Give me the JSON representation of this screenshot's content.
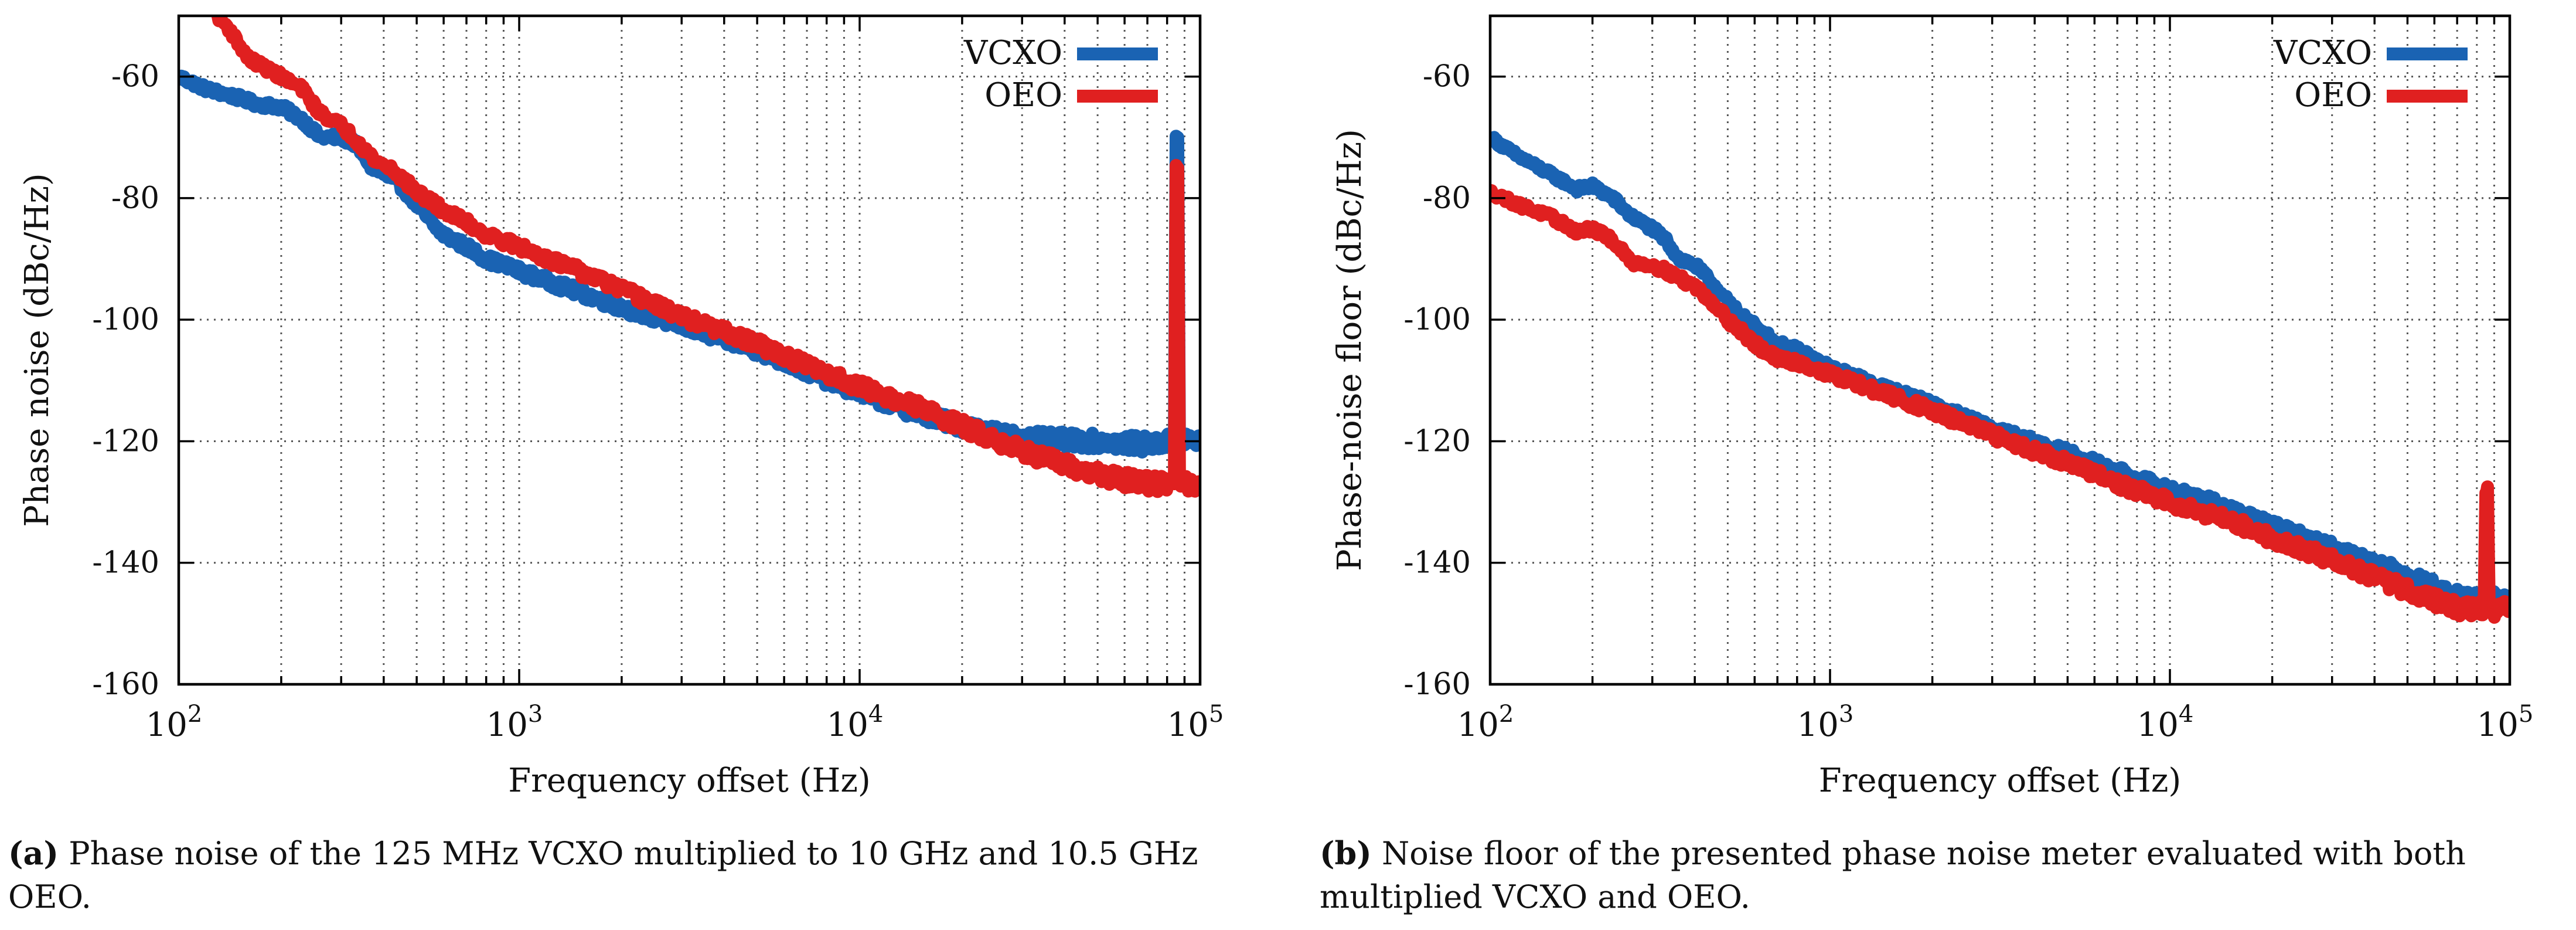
{
  "colors": {
    "vcxo": "#1a63b3",
    "oeo": "#e02020",
    "grid": "#555555",
    "axis": "#000000"
  },
  "chart_data": [
    {
      "type": "line",
      "id": "a",
      "xscale": "log",
      "xlim": [
        100,
        100000
      ],
      "ylim": [
        -160,
        -50
      ],
      "xlabel": "Frequency offset (Hz)",
      "ylabel": "Phase noise (dBc/Hz)",
      "yticks": [
        -60,
        -80,
        -100,
        -120,
        -140,
        -160
      ],
      "ytick_labels": [
        "-60",
        "-80",
        "-100",
        "-120",
        "-140",
        "-160"
      ],
      "xticks": [
        {
          "value": 100,
          "base": "10",
          "exp": "2"
        },
        {
          "value": 1000,
          "base": "10",
          "exp": "3"
        },
        {
          "value": 10000,
          "base": "10",
          "exp": "4"
        },
        {
          "value": 100000,
          "base": "10",
          "exp": "5"
        }
      ],
      "legend": {
        "position": "top-right",
        "entries": [
          "VCXO",
          "OEO"
        ]
      },
      "series": [
        {
          "name": "VCXO",
          "color": "#1a63b3",
          "points": [
            [
              100,
              -60
            ],
            [
              120,
              -62
            ],
            [
              150,
              -63.5
            ],
            [
              170,
              -64.5
            ],
            [
              200,
              -65
            ],
            [
              230,
              -67
            ],
            [
              260,
              -70
            ],
            [
              300,
              -70
            ],
            [
              330,
              -71
            ],
            [
              370,
              -75
            ],
            [
              400,
              -76
            ],
            [
              450,
              -78
            ],
            [
              500,
              -81
            ],
            [
              550,
              -84
            ],
            [
              600,
              -86
            ],
            [
              700,
              -88
            ],
            [
              800,
              -90
            ],
            [
              900,
              -91
            ],
            [
              1000,
              -92
            ],
            [
              1500,
              -95.5
            ],
            [
              2000,
              -98
            ],
            [
              3000,
              -101
            ],
            [
              5000,
              -105
            ],
            [
              7000,
              -108.5
            ],
            [
              10000,
              -112
            ],
            [
              15000,
              -115.5
            ],
            [
              20000,
              -117.5
            ],
            [
              30000,
              -119.5
            ],
            [
              50000,
              -120
            ],
            [
              70000,
              -120.5
            ],
            [
              84000,
              -120
            ],
            [
              85000,
              -70
            ],
            [
              86000,
              -70
            ],
            [
              87000,
              -120
            ],
            [
              100000,
              -120
            ]
          ],
          "noise": 1.4
        },
        {
          "name": "OEO",
          "color": "#e02020",
          "points": [
            [
              130,
              -50
            ],
            [
              140,
              -52
            ],
            [
              160,
              -57
            ],
            [
              200,
              -60
            ],
            [
              230,
              -62
            ],
            [
              260,
              -66
            ],
            [
              300,
              -68
            ],
            [
              340,
              -71
            ],
            [
              380,
              -74
            ],
            [
              420,
              -75
            ],
            [
              500,
              -79
            ],
            [
              600,
              -82
            ],
            [
              700,
              -84
            ],
            [
              800,
              -86
            ],
            [
              1000,
              -88
            ],
            [
              1500,
              -92
            ],
            [
              2000,
              -95
            ],
            [
              3000,
              -99.5
            ],
            [
              5000,
              -104
            ],
            [
              7000,
              -107.5
            ],
            [
              10000,
              -111
            ],
            [
              15000,
              -114.5
            ],
            [
              20000,
              -117.5
            ],
            [
              30000,
              -121.5
            ],
            [
              40000,
              -124
            ],
            [
              50000,
              -125.5
            ],
            [
              70000,
              -127
            ],
            [
              84000,
              -127
            ],
            [
              85000,
              -75
            ],
            [
              86000,
              -75
            ],
            [
              87000,
              -127
            ],
            [
              100000,
              -127
            ]
          ],
          "noise": 1.4
        }
      ]
    },
    {
      "type": "line",
      "id": "b",
      "xscale": "log",
      "xlim": [
        100,
        100000
      ],
      "ylim": [
        -160,
        -50
      ],
      "xlabel": "Frequency offset (Hz)",
      "ylabel": "Phase-noise floor (dBc/Hz)",
      "yticks": [
        -60,
        -80,
        -100,
        -120,
        -140,
        -160
      ],
      "ytick_labels": [
        "-60",
        "-80",
        "-100",
        "-120",
        "-140",
        "-160"
      ],
      "xticks": [
        {
          "value": 100,
          "base": "10",
          "exp": "2"
        },
        {
          "value": 1000,
          "base": "10",
          "exp": "3"
        },
        {
          "value": 10000,
          "base": "10",
          "exp": "4"
        },
        {
          "value": 100000,
          "base": "10",
          "exp": "5"
        }
      ],
      "legend": {
        "position": "top-right",
        "entries": [
          "VCXO",
          "OEO"
        ]
      },
      "series": [
        {
          "name": "VCXO",
          "color": "#1a63b3",
          "points": [
            [
              100,
              -70
            ],
            [
              120,
              -73
            ],
            [
              150,
              -76
            ],
            [
              180,
              -78.5
            ],
            [
              200,
              -78
            ],
            [
              230,
              -80
            ],
            [
              260,
              -83
            ],
            [
              300,
              -85
            ],
            [
              330,
              -87
            ],
            [
              360,
              -90
            ],
            [
              400,
              -91
            ],
            [
              450,
              -94
            ],
            [
              500,
              -97
            ],
            [
              550,
              -99.5
            ],
            [
              600,
              -101
            ],
            [
              700,
              -104
            ],
            [
              800,
              -105
            ],
            [
              1000,
              -108
            ],
            [
              1500,
              -111.5
            ],
            [
              2000,
              -114
            ],
            [
              3000,
              -118
            ],
            [
              5000,
              -122
            ],
            [
              7000,
              -125
            ],
            [
              10000,
              -128
            ],
            [
              15000,
              -131
            ],
            [
              20000,
              -134
            ],
            [
              30000,
              -137.5
            ],
            [
              50000,
              -142
            ],
            [
              70000,
              -145.5
            ],
            [
              100000,
              -146
            ]
          ],
          "noise": 1.2
        },
        {
          "name": "OEO",
          "color": "#e02020",
          "points": [
            [
              100,
              -79
            ],
            [
              120,
              -81
            ],
            [
              150,
              -83
            ],
            [
              180,
              -85.5
            ],
            [
              200,
              -85
            ],
            [
              230,
              -87
            ],
            [
              260,
              -90.5
            ],
            [
              300,
              -91
            ],
            [
              330,
              -92
            ],
            [
              370,
              -93.5
            ],
            [
              400,
              -94.5
            ],
            [
              450,
              -97
            ],
            [
              500,
              -100
            ],
            [
              550,
              -102
            ],
            [
              600,
              -104
            ],
            [
              700,
              -106.5
            ],
            [
              800,
              -107
            ],
            [
              1000,
              -109
            ],
            [
              1500,
              -112.5
            ],
            [
              2000,
              -115
            ],
            [
              3000,
              -119
            ],
            [
              5000,
              -123.5
            ],
            [
              7000,
              -127
            ],
            [
              10000,
              -130
            ],
            [
              15000,
              -133
            ],
            [
              20000,
              -136
            ],
            [
              30000,
              -139.5
            ],
            [
              50000,
              -144.5
            ],
            [
              70000,
              -147.5
            ],
            [
              84000,
              -147.5
            ],
            [
              85000,
              -127.5
            ],
            [
              86000,
              -127.5
            ],
            [
              87000,
              -148
            ],
            [
              100000,
              -147
            ]
          ],
          "noise": 1.3
        }
      ]
    }
  ],
  "captions": {
    "a": {
      "label": "(a)",
      "text": "Phase noise of the 125 MHz VCXO multiplied to 10 GHz and 10.5 GHz OEO."
    },
    "b": {
      "label": "(b)",
      "text": "Noise floor of the presented phase noise meter evaluated with both multiplied VCXO and OEO."
    }
  }
}
